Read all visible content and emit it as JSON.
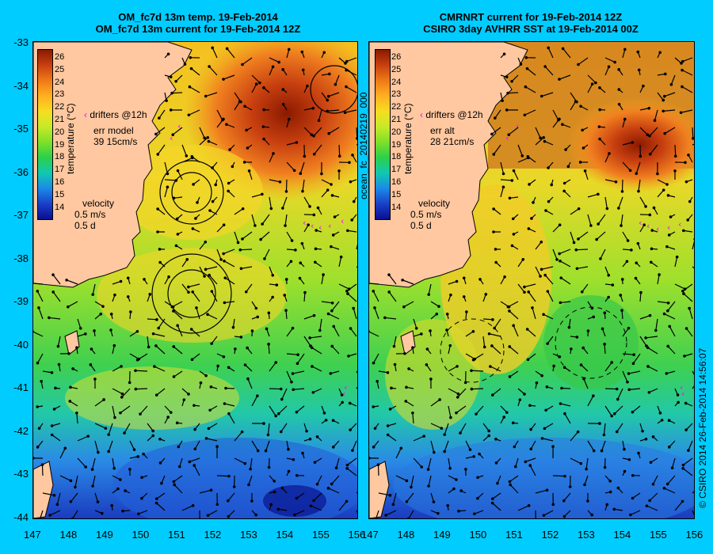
{
  "left_panel": {
    "title_line1": "OM_fc7d 13m temp. 19-Feb-2014",
    "title_line2": "OM_fc7d 13m current for 19-Feb-2014 12Z",
    "drifters_label": "drifters @12h",
    "err_line1": "err model",
    "err_line2": "39 15cm/s",
    "velocity_label": "velocity",
    "velocity_speed": "0.5 m/s",
    "velocity_days": "0.5 d"
  },
  "right_panel": {
    "title_line1": "CMRNRT current for 19-Feb-2014 12Z",
    "title_line2": "CSIRO 3day AVHRR SST at 19-Feb-2014 00Z",
    "drifters_label": "drifters @12h",
    "err_line1": "err alt",
    "err_line2": "28 21cm/s",
    "velocity_label": "velocity",
    "velocity_speed": "0.5 m/s",
    "velocity_days": "0.5 d"
  },
  "colorbar": {
    "title": "temperature (°C)",
    "ticks": [
      "26",
      "25",
      "24",
      "23",
      "22",
      "21",
      "20",
      "19",
      "18",
      "17",
      "16",
      "15",
      "14"
    ]
  },
  "axes": {
    "x_ticks": [
      "147",
      "148",
      "149",
      "150",
      "151",
      "152",
      "153",
      "154",
      "155",
      "156"
    ],
    "y_ticks": [
      "-33",
      "-34",
      "-35",
      "-36",
      "-37",
      "-38",
      "-39",
      "-40",
      "-41",
      "-42",
      "-43",
      "-44"
    ]
  },
  "side_label": "ocean_fc_20140219_000",
  "credit": "© CSIRO 2014   26-Feb-2014 14:56:07",
  "colors": {
    "background": "#00ccff",
    "land": "#ffc8a0",
    "warm_core": "#8b1a00",
    "drifters": "#ff00ff"
  }
}
